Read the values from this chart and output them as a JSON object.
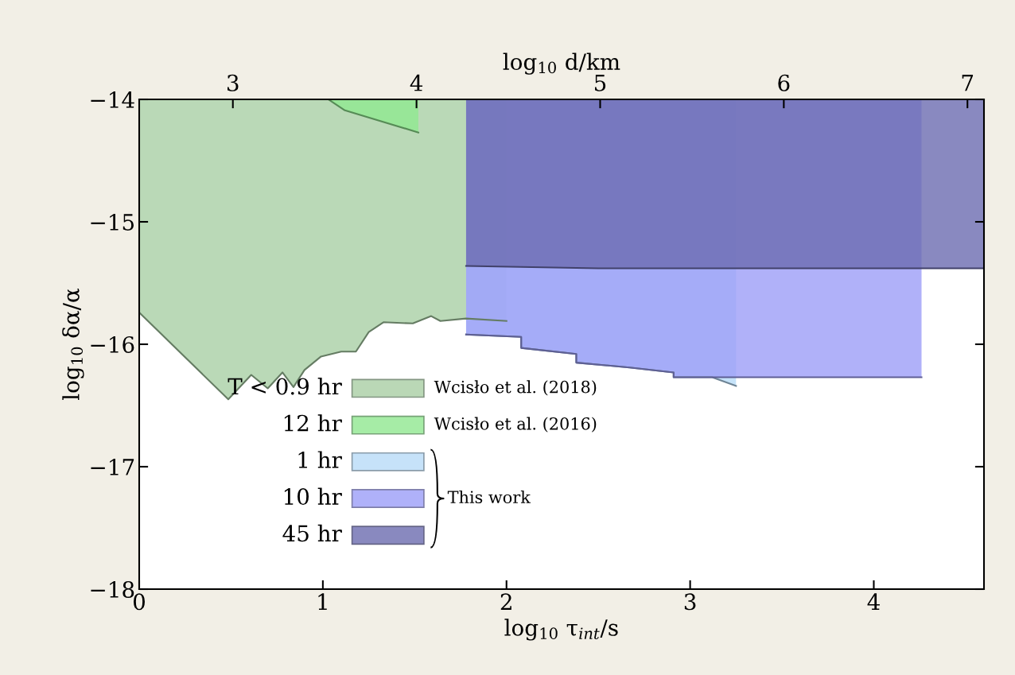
{
  "chart_data": {
    "type": "area",
    "xlabel": "log$_{10}$ τ$_{int}$/s",
    "ylabel": "log$_{10}$ δα/α",
    "x2label": "log$_{10}$ d/km",
    "xlim": [
      0,
      4.6
    ],
    "xticks": [
      0,
      1,
      2,
      3,
      4
    ],
    "x2lim": [
      2.49,
      7.09
    ],
    "x2ticks": [
      3,
      4,
      5,
      6,
      7
    ],
    "ylim": [
      -18,
      -14
    ],
    "yticks": [
      {
        "value": -18,
        "label": "−18"
      },
      {
        "value": -17,
        "label": "−17"
      },
      {
        "value": -16,
        "label": "−16"
      },
      {
        "value": -15,
        "label": "−15"
      },
      {
        "value": -14,
        "label": "−14"
      }
    ],
    "grid": false,
    "legend": "bottom left",
    "annotations": [
      "Wcisło et al. (2018)",
      "Wcisło et al. (2016)",
      "This work"
    ],
    "series": [
      {
        "name": "T < 0.9 hr",
        "color": "#a9cfa5",
        "x": [
          0,
          0.485,
          0.61,
          0.7,
          0.78,
          0.84,
          0.9,
          0.99,
          1.1,
          1.18,
          1.25,
          1.33,
          1.49,
          1.59,
          1.64,
          1.78,
          2.0
        ],
        "values": [
          -15.74,
          -16.45,
          -16.25,
          -16.36,
          -16.23,
          -16.35,
          -16.21,
          -16.1,
          -16.06,
          -16.06,
          -15.9,
          -15.82,
          -15.83,
          -15.77,
          -15.81,
          -15.79,
          -15.81
        ]
      },
      {
        "name": "12 hr",
        "color": "#90e890",
        "x": [
          1.03,
          1.12,
          1.52
        ],
        "values": [
          -14.0,
          -14.09,
          -14.27
        ]
      },
      {
        "name": "1 hr",
        "color": "#b8dcf8",
        "x": [
          1.78,
          2.08,
          2.08,
          2.38,
          2.38,
          2.67,
          2.91,
          2.91,
          3.12,
          3.25
        ],
        "values": [
          -15.92,
          -15.94,
          -16.03,
          -16.08,
          -16.15,
          -16.19,
          -16.23,
          -16.27,
          -16.27,
          -16.34
        ]
      },
      {
        "name": "10 hr",
        "color": "#9c9ef8",
        "x": [
          1.78,
          2.08,
          2.08,
          2.38,
          2.38,
          2.67,
          2.91,
          2.91,
          4.26
        ],
        "values": [
          -15.92,
          -15.94,
          -16.03,
          -16.08,
          -16.15,
          -16.19,
          -16.23,
          -16.27,
          -16.27
        ]
      },
      {
        "name": "45 hr",
        "color": "#6c6cb0",
        "x": [
          1.78,
          2.5,
          4.6
        ],
        "values": [
          -15.36,
          -15.38,
          -15.38
        ]
      }
    ]
  }
}
